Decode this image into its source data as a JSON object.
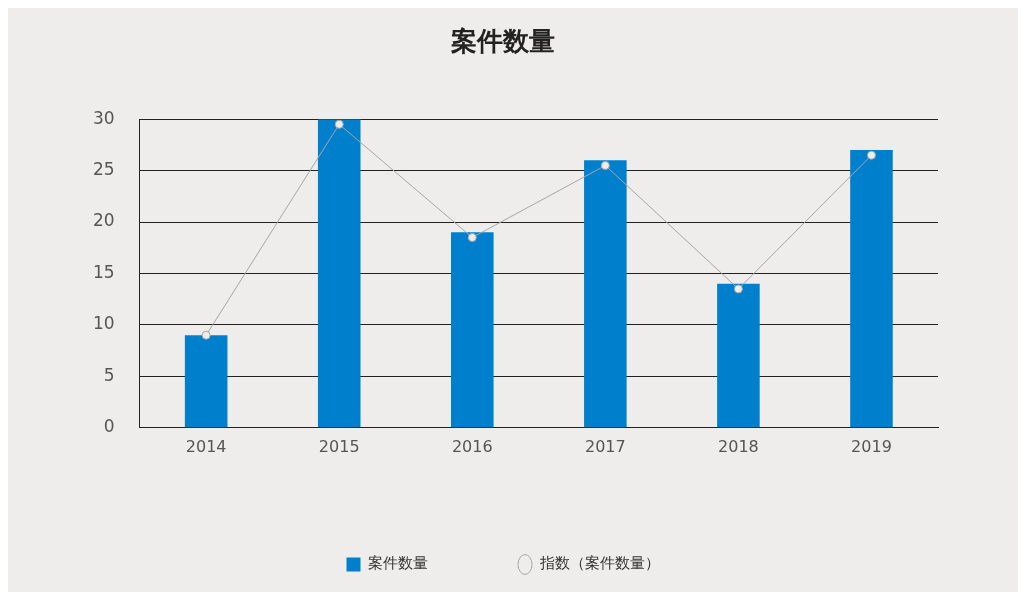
{
  "chart_data": {
    "type": "bar",
    "title": "案件数量",
    "categories": [
      "2014",
      "2015",
      "2016",
      "2017",
      "2018",
      "2019"
    ],
    "series": [
      {
        "name": "案件数量",
        "color": "#0080cc",
        "values": [
          9,
          30,
          19,
          26,
          14,
          27
        ]
      },
      {
        "name": "指数（案件数量）",
        "type": "line",
        "color": "#a6a6a6",
        "marker": "circle",
        "values": [
          9,
          29.5,
          18.5,
          25.5,
          13.5,
          26.5
        ]
      }
    ],
    "ylim": [
      0,
      30
    ],
    "yticks": [
      0,
      5,
      10,
      15,
      20,
      25,
      30
    ],
    "grid": "y",
    "legend": "bottom"
  }
}
